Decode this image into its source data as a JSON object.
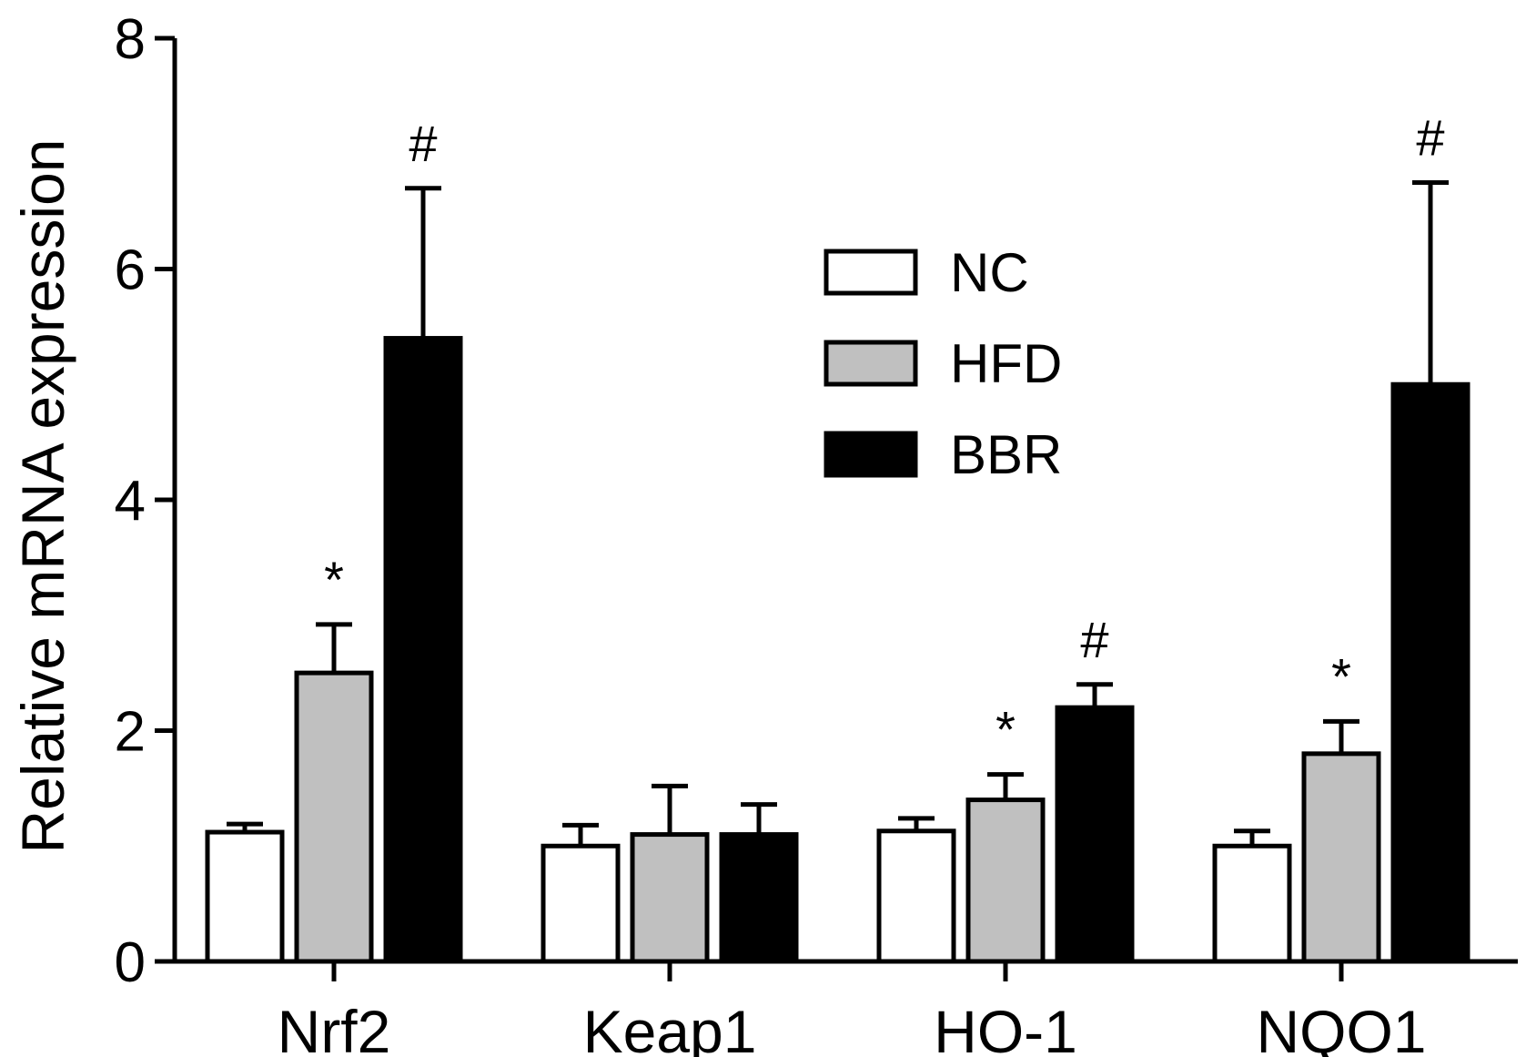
{
  "chart_data": {
    "type": "bar",
    "title": "",
    "xlabel": "",
    "ylabel": "Relative mRNA expression",
    "ylim": [
      0,
      8
    ],
    "yticks": [
      0,
      2,
      4,
      6,
      8
    ],
    "grid": false,
    "legend_position": "top-center",
    "categories": [
      "Nrf2",
      "Keap1",
      "HO-1",
      "NQO1"
    ],
    "series": [
      {
        "name": "NC",
        "color": "#ffffff",
        "values": [
          1.12,
          1.0,
          1.13,
          1.0
        ],
        "errors": [
          0.07,
          0.18,
          0.11,
          0.13
        ],
        "annotations": [
          "",
          "",
          "",
          ""
        ]
      },
      {
        "name": "HFD",
        "color": "#c0c0c0",
        "values": [
          2.5,
          1.1,
          1.4,
          1.8
        ],
        "errors": [
          0.42,
          0.42,
          0.22,
          0.28
        ],
        "annotations": [
          "*",
          "",
          "*",
          "*"
        ]
      },
      {
        "name": "BBR",
        "color": "#000000",
        "values": [
          5.4,
          1.1,
          2.2,
          5.0
        ],
        "errors": [
          1.3,
          0.26,
          0.2,
          1.75
        ],
        "annotations": [
          "#",
          "",
          "#",
          "#"
        ]
      }
    ]
  }
}
